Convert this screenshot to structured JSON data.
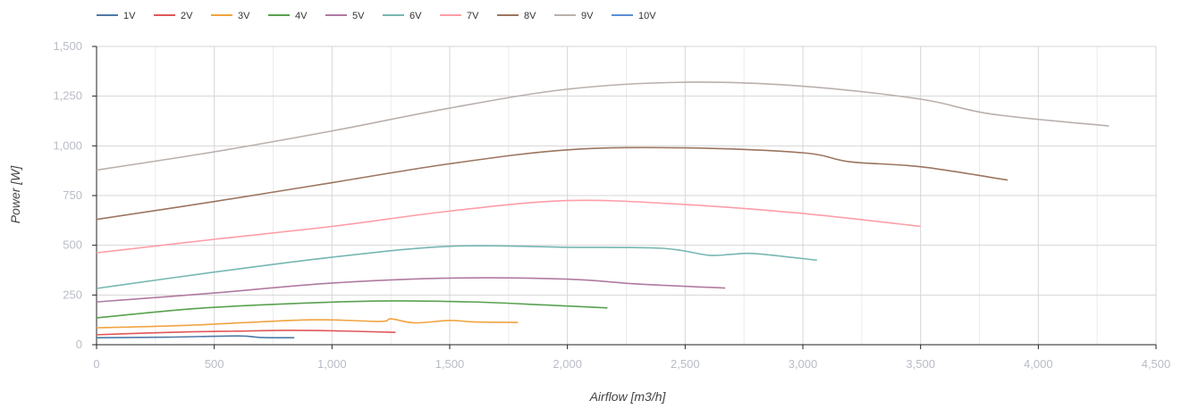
{
  "chart_data": {
    "type": "line",
    "title": "",
    "xlabel": "Airflow [m3/h]",
    "ylabel": "Power [W]",
    "xlim": [
      0,
      4500
    ],
    "ylim": [
      0,
      1500
    ],
    "x_ticks": [
      0,
      500,
      1000,
      1500,
      2000,
      2500,
      3000,
      3500,
      4000,
      4500
    ],
    "y_ticks": [
      0,
      250,
      500,
      750,
      1000,
      1250,
      1500
    ],
    "grid": true,
    "legend_position": "top-left",
    "series": [
      {
        "name": "1V",
        "color": "#4e79a7",
        "x": [
          0,
          300,
          600,
          700,
          840
        ],
        "y": [
          35,
          38,
          44,
          36,
          35
        ]
      },
      {
        "name": "2V",
        "color": "#e15759",
        "x": [
          0,
          200,
          400,
          600,
          800,
          1000,
          1270
        ],
        "y": [
          50,
          58,
          65,
          68,
          72,
          70,
          62
        ]
      },
      {
        "name": "3V",
        "color": "#f1a340",
        "x": [
          0,
          400,
          900,
          1200,
          1250,
          1350,
          1500,
          1600,
          1790
        ],
        "y": [
          85,
          98,
          125,
          117,
          130,
          110,
          122,
          115,
          112
        ]
      },
      {
        "name": "4V",
        "color": "#59a14f",
        "x": [
          0,
          400,
          800,
          1200,
          1600,
          1900,
          2170
        ],
        "y": [
          135,
          180,
          205,
          220,
          215,
          200,
          185
        ]
      },
      {
        "name": "5V",
        "color": "#b07aa1",
        "x": [
          0,
          500,
          1000,
          1500,
          2000,
          2300,
          2670
        ],
        "y": [
          215,
          260,
          310,
          335,
          330,
          305,
          285
        ]
      },
      {
        "name": "6V",
        "color": "#76b7b2",
        "x": [
          0,
          500,
          1000,
          1500,
          2000,
          2400,
          2600,
          2700,
          2800,
          3060
        ],
        "y": [
          283,
          365,
          440,
          495,
          490,
          485,
          450,
          455,
          458,
          425
        ]
      },
      {
        "name": "7V",
        "color": "#ff9da7",
        "x": [
          0,
          500,
          1000,
          1500,
          2000,
          2500,
          3000,
          3500
        ],
        "y": [
          462,
          530,
          595,
          672,
          725,
          705,
          660,
          595
        ]
      },
      {
        "name": "8V",
        "color": "#9c755f",
        "x": [
          0,
          500,
          1000,
          1500,
          2000,
          2500,
          3000,
          3200,
          3500,
          3870
        ],
        "y": [
          630,
          720,
          815,
          910,
          980,
          990,
          965,
          920,
          895,
          828
        ]
      },
      {
        "name": "9V",
        "color": "#bab0ac",
        "x": [
          0,
          500,
          1000,
          1500,
          2000,
          2500,
          3000,
          3500,
          3800,
          4300
        ],
        "y": [
          878,
          970,
          1075,
          1190,
          1285,
          1320,
          1300,
          1235,
          1160,
          1100
        ]
      },
      {
        "name": "10V",
        "color": "#5b8fd6",
        "x": [],
        "y": []
      }
    ]
  }
}
